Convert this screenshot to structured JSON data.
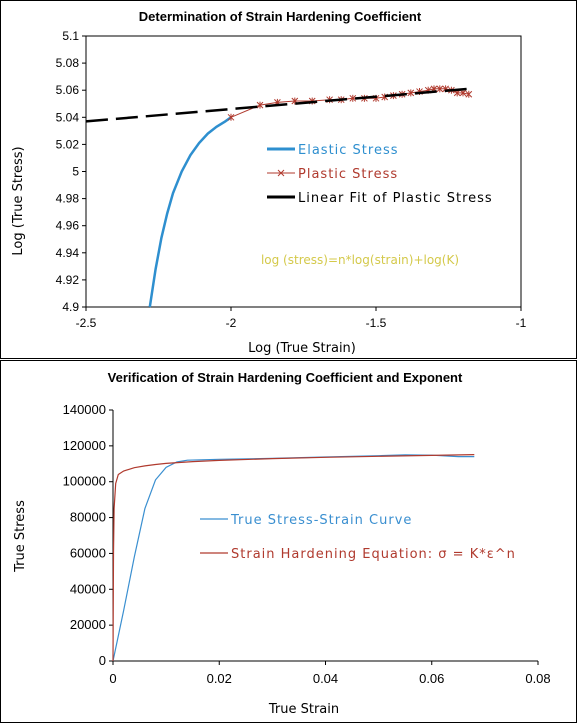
{
  "chart_data": [
    {
      "type": "line",
      "title": "Determination of Strain Hardening Coefficient",
      "xlabel": "Log (True Strain)",
      "ylabel": "Log (True Stress)",
      "xlim": [
        -2.5,
        -1
      ],
      "ylim": [
        4.9,
        5.1
      ],
      "xticks": [
        "-2.5",
        "-2",
        "-1.5",
        "-1"
      ],
      "yticks": [
        "4.9",
        "4.92",
        "4.94",
        "4.96",
        "4.98",
        "5",
        "5.02",
        "5.04",
        "5.06",
        "5.08",
        "5.1"
      ],
      "grid": false,
      "legend_position": "center-right",
      "annotation": "log (stress)=n*log(strain)+log(K)",
      "series": [
        {
          "name": "Elastic Stress",
          "color": "#2e8fcf",
          "style": "solid",
          "x": [
            -2.28,
            -2.26,
            -2.24,
            -2.22,
            -2.2,
            -2.17,
            -2.14,
            -2.11,
            -2.08,
            -2.05,
            -2.02,
            -2.0
          ],
          "y": [
            4.9,
            4.928,
            4.951,
            4.969,
            4.984,
            5.0,
            5.012,
            5.021,
            5.028,
            5.033,
            5.037,
            5.04
          ]
        },
        {
          "name": "Plastic Stress",
          "color": "#b03a2e",
          "style": "markers",
          "x": [
            -2.0,
            -1.9,
            -1.84,
            -1.78,
            -1.72,
            -1.66,
            -1.62,
            -1.58,
            -1.54,
            -1.5,
            -1.47,
            -1.44,
            -1.41,
            -1.38,
            -1.35,
            -1.32,
            -1.3,
            -1.28,
            -1.26,
            -1.24,
            -1.22,
            -1.2,
            -1.18
          ],
          "y": [
            5.04,
            5.049,
            5.051,
            5.052,
            5.052,
            5.053,
            5.053,
            5.054,
            5.054,
            5.054,
            5.055,
            5.056,
            5.057,
            5.058,
            5.059,
            5.06,
            5.061,
            5.061,
            5.061,
            5.06,
            5.058,
            5.058,
            5.057
          ]
        },
        {
          "name": "Linear Fit of Plastic Stress",
          "color": "#000000",
          "style": "dashed",
          "x": [
            -2.5,
            -1.18
          ],
          "y": [
            5.037,
            5.061
          ]
        }
      ]
    },
    {
      "type": "line",
      "title": "Verification of Strain Hardening Coefficient and Exponent",
      "xlabel": "True Strain",
      "ylabel": "True Stress",
      "xlim": [
        0,
        0.08
      ],
      "ylim": [
        0,
        140000
      ],
      "xticks": [
        "0",
        "0.02",
        "0.04",
        "0.06",
        "0.08"
      ],
      "yticks": [
        "0",
        "20000",
        "40000",
        "60000",
        "80000",
        "100000",
        "120000",
        "140000"
      ],
      "grid": false,
      "legend_position": "center",
      "series": [
        {
          "name": "True Stress-Strain Curve",
          "color": "#3a8fd0",
          "style": "solid",
          "x": [
            0,
            0.002,
            0.004,
            0.006,
            0.008,
            0.01,
            0.012,
            0.014,
            0.02,
            0.03,
            0.04,
            0.05,
            0.055,
            0.06,
            0.065,
            0.068
          ],
          "y": [
            0,
            28000,
            58000,
            85000,
            101000,
            108000,
            111000,
            112000,
            112500,
            113000,
            113800,
            114500,
            115000,
            114800,
            114000,
            114000
          ]
        },
        {
          "name": "Strain Hardening Equation: σ = K*ε^n",
          "color": "#b03a2e",
          "style": "solid",
          "x": [
            0.0,
            0.0001,
            0.0002,
            0.0005,
            0.001,
            0.002,
            0.004,
            0.006,
            0.008,
            0.01,
            0.015,
            0.02,
            0.03,
            0.04,
            0.05,
            0.06,
            0.068
          ],
          "y": [
            0,
            60000,
            85000,
            99000,
            104000,
            106000,
            107800,
            108800,
            109600,
            110200,
            111200,
            111900,
            112900,
            113600,
            114200,
            114700,
            115100
          ]
        }
      ]
    }
  ]
}
